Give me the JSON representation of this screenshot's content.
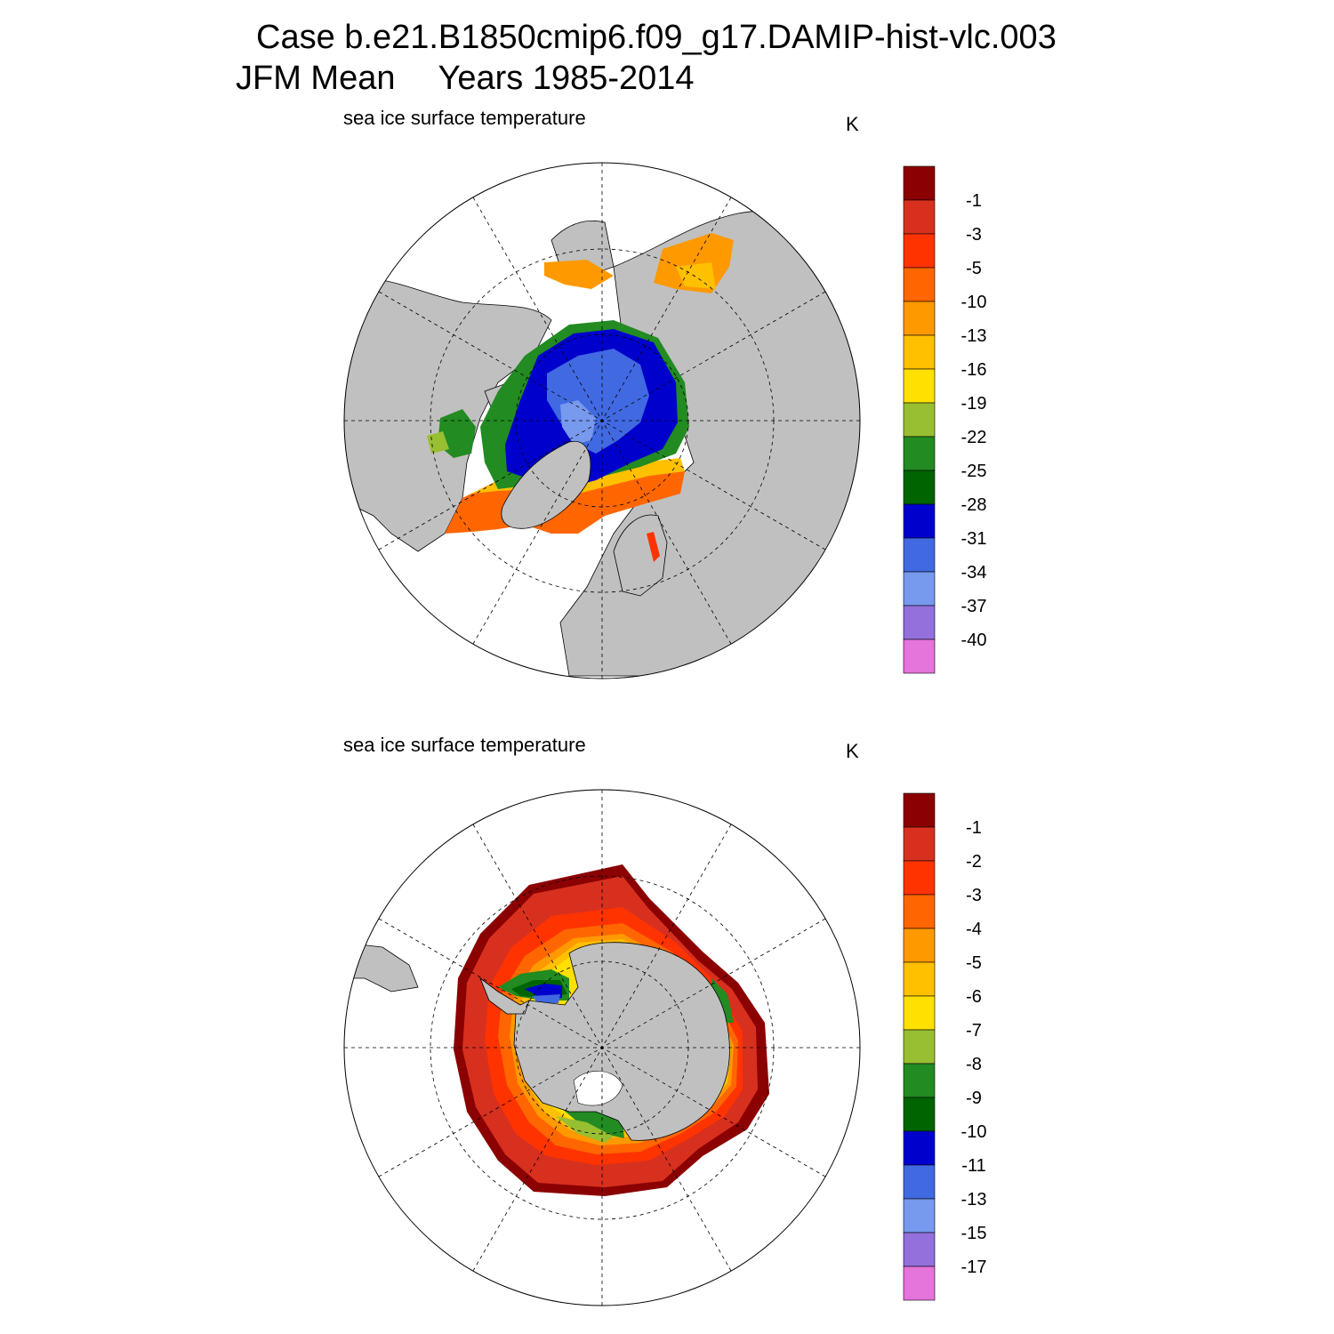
{
  "title": {
    "case": "Case b.e21.B1850cmip6.f09_g17.DAMIP-hist-vlc.003",
    "season": "JFM Mean",
    "years": "Years 1985-2014"
  },
  "panels": [
    {
      "id": "north",
      "label": "sea ice surface temperature",
      "units": "K",
      "colorbar_labels": [
        "-1",
        "-3",
        "-5",
        "-10",
        "-13",
        "-16",
        "-19",
        "-22",
        "-25",
        "-28",
        "-31",
        "-34",
        "-37",
        "-40"
      ]
    },
    {
      "id": "south",
      "label": "sea ice surface temperature",
      "units": "K",
      "colorbar_labels": [
        "-1",
        "-2",
        "-3",
        "-4",
        "-5",
        "-6",
        "-7",
        "-8",
        "-9",
        "-10",
        "-11",
        "-13",
        "-15",
        "-17"
      ]
    }
  ],
  "colors": {
    "palette": [
      "#8b0000",
      "#d7301f",
      "#ff3300",
      "#ff6600",
      "#ff9900",
      "#ffc000",
      "#ffe000",
      "#98bf32",
      "#228b22",
      "#006400",
      "#0000cd",
      "#4169e1",
      "#7799ee",
      "#9370db",
      "#e574db"
    ],
    "land": "#c0c0c0",
    "ocean": "#ffffff"
  }
}
